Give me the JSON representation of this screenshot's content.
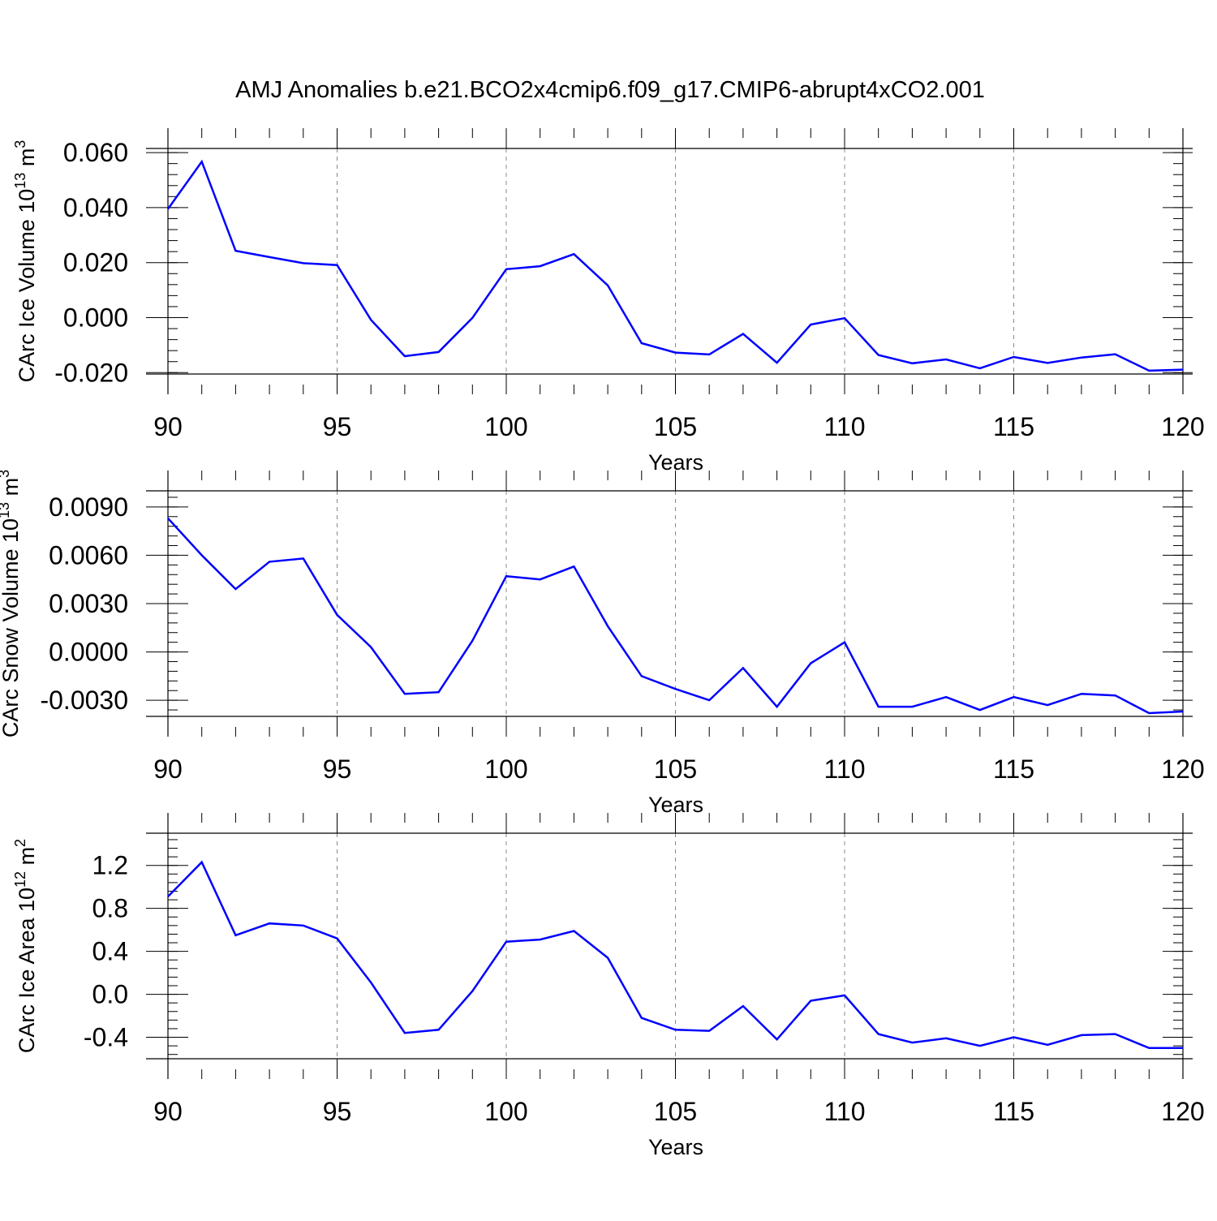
{
  "title": "AMJ Anomalies b.e21.BCO2x4cmip6.f09_g17.CMIP6-abrupt4xCO2.001",
  "colors": {
    "series": "#0000ff",
    "axis": "#000000",
    "grid": "#888888"
  },
  "chart_data": [
    {
      "type": "line",
      "title": "AMJ Anomalies b.e21.BCO2x4cmip6.f09_g17.CMIP6-abrupt4xCO2.001",
      "xlabel": "Years",
      "ylabel": {
        "main": "CArc Ice Volume 10",
        "exp": "13",
        "unit": " m",
        "unit_exp": "3"
      },
      "xlim": [
        90,
        120
      ],
      "ylim": [
        -0.0205,
        0.0615
      ],
      "x_ticks": [
        90,
        95,
        100,
        105,
        110,
        115,
        120
      ],
      "x_tick_labels": [
        "90",
        "95",
        "100",
        "105",
        "110",
        "115",
        "120"
      ],
      "y_ticks": [
        -0.02,
        0,
        0.02,
        0.04,
        0.06
      ],
      "y_tick_labels": [
        "-0.020",
        "0.000",
        "0.020",
        "0.040",
        "0.060"
      ],
      "grid": "dashed vertical at major x ticks",
      "x": [
        90,
        91,
        92,
        93,
        94,
        95,
        96,
        97,
        98,
        99,
        100,
        101,
        102,
        103,
        104,
        105,
        106,
        107,
        108,
        109,
        110,
        111,
        112,
        113,
        114,
        115,
        116,
        117,
        118,
        119,
        120
      ],
      "values": [
        0.0395,
        0.0567,
        0.0243,
        0.022,
        0.0198,
        0.0191,
        -0.0008,
        -0.014,
        -0.0125,
        -0.0001,
        0.0176,
        0.0187,
        0.0231,
        0.0117,
        -0.0093,
        -0.0127,
        -0.0134,
        -0.0059,
        -0.0164,
        -0.0025,
        -0.0002,
        -0.0136,
        -0.0166,
        -0.0152,
        -0.0184,
        -0.0143,
        -0.0165,
        -0.0145,
        -0.0133,
        -0.0193,
        -0.0189
      ]
    },
    {
      "type": "line",
      "xlabel": "Years",
      "ylabel": {
        "main": "CArc Snow Volume 10",
        "exp": "13",
        "unit": " m",
        "unit_exp": "3"
      },
      "xlim": [
        90,
        120
      ],
      "ylim": [
        -0.004,
        0.01
      ],
      "x_ticks": [
        90,
        95,
        100,
        105,
        110,
        115,
        120
      ],
      "x_tick_labels": [
        "90",
        "95",
        "100",
        "105",
        "110",
        "115",
        "120"
      ],
      "y_ticks": [
        -0.003,
        0,
        0.003,
        0.006,
        0.009
      ],
      "y_tick_labels": [
        "-0.0030",
        "0.0000",
        "0.0030",
        "0.0060",
        "0.0090"
      ],
      "grid": "dashed vertical at major x ticks",
      "x": [
        90,
        91,
        92,
        93,
        94,
        95,
        96,
        97,
        98,
        99,
        100,
        101,
        102,
        103,
        104,
        105,
        106,
        107,
        108,
        109,
        110,
        111,
        112,
        113,
        114,
        115,
        116,
        117,
        118,
        119,
        120
      ],
      "values": [
        0.0083,
        0.006,
        0.0039,
        0.0056,
        0.0058,
        0.0023,
        0.0003,
        -0.0026,
        -0.0025,
        0.0007,
        0.0047,
        0.0045,
        0.0053,
        0.0016,
        -0.0015,
        -0.0023,
        -0.003,
        -0.001,
        -0.0034,
        -0.0007,
        0.0006,
        -0.0034,
        -0.0034,
        -0.0028,
        -0.0036,
        -0.0028,
        -0.0033,
        -0.0026,
        -0.0027,
        -0.0038,
        -0.0037
      ]
    },
    {
      "type": "line",
      "xlabel": "Years",
      "ylabel": {
        "main": "CArc Ice Area 10",
        "exp": "12",
        "unit": " m",
        "unit_exp": "2"
      },
      "xlim": [
        90,
        120
      ],
      "ylim": [
        -0.6,
        1.5
      ],
      "x_ticks": [
        90,
        95,
        100,
        105,
        110,
        115,
        120
      ],
      "x_tick_labels": [
        "90",
        "95",
        "100",
        "105",
        "110",
        "115",
        "120"
      ],
      "y_ticks": [
        -0.4,
        0,
        0.4,
        0.8,
        1.2
      ],
      "y_tick_labels": [
        "-0.4",
        "0.0",
        "0.4",
        "0.8",
        "1.2"
      ],
      "grid": "dashed vertical at major x ticks",
      "x": [
        90,
        91,
        92,
        93,
        94,
        95,
        96,
        97,
        98,
        99,
        100,
        101,
        102,
        103,
        104,
        105,
        106,
        107,
        108,
        109,
        110,
        111,
        112,
        113,
        114,
        115,
        116,
        117,
        118,
        119,
        120
      ],
      "values": [
        0.91,
        1.23,
        0.55,
        0.66,
        0.64,
        0.52,
        0.11,
        -0.36,
        -0.33,
        0.03,
        0.49,
        0.51,
        0.59,
        0.34,
        -0.22,
        -0.33,
        -0.34,
        -0.11,
        -0.42,
        -0.06,
        -0.01,
        -0.37,
        -0.45,
        -0.41,
        -0.48,
        -0.4,
        -0.47,
        -0.38,
        -0.37,
        -0.5,
        -0.5
      ]
    }
  ]
}
